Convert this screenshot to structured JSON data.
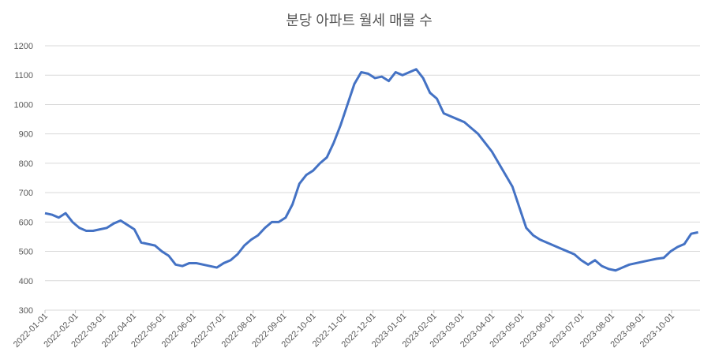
{
  "chart_data": {
    "type": "line",
    "title": "분당 아파트 월세 매물 수",
    "x": [
      "2022-01-01",
      "2022-01-08",
      "2022-01-15",
      "2022-01-22",
      "2022-01-29",
      "2022-02-05",
      "2022-02-12",
      "2022-02-19",
      "2022-02-26",
      "2022-03-05",
      "2022-03-12",
      "2022-03-19",
      "2022-03-26",
      "2022-04-02",
      "2022-04-09",
      "2022-04-16",
      "2022-04-23",
      "2022-04-30",
      "2022-05-07",
      "2022-05-14",
      "2022-05-21",
      "2022-05-28",
      "2022-06-04",
      "2022-06-11",
      "2022-06-18",
      "2022-06-25",
      "2022-07-02",
      "2022-07-09",
      "2022-07-16",
      "2022-07-23",
      "2022-07-30",
      "2022-08-06",
      "2022-08-13",
      "2022-08-20",
      "2022-08-27",
      "2022-09-03",
      "2022-09-10",
      "2022-09-17",
      "2022-09-24",
      "2022-10-01",
      "2022-10-08",
      "2022-10-15",
      "2022-10-22",
      "2022-10-29",
      "2022-11-05",
      "2022-11-12",
      "2022-11-19",
      "2022-11-26",
      "2022-12-03",
      "2022-12-10",
      "2022-12-17",
      "2022-12-24",
      "2022-12-31",
      "2023-01-07",
      "2023-01-14",
      "2023-01-21",
      "2023-01-28",
      "2023-02-04",
      "2023-02-11",
      "2023-02-18",
      "2023-02-25",
      "2023-03-04",
      "2023-03-11",
      "2023-03-18",
      "2023-03-25",
      "2023-04-01",
      "2023-04-08",
      "2023-04-15",
      "2023-04-22",
      "2023-04-29",
      "2023-05-06",
      "2023-05-13",
      "2023-05-20",
      "2023-05-27",
      "2023-06-03",
      "2023-06-10",
      "2023-06-17",
      "2023-06-24",
      "2023-07-01",
      "2023-07-08",
      "2023-07-15",
      "2023-07-22",
      "2023-07-29",
      "2023-08-05",
      "2023-08-12",
      "2023-08-19",
      "2023-08-26",
      "2023-09-02",
      "2023-09-09",
      "2023-09-16",
      "2023-09-23",
      "2023-09-30",
      "2023-10-07",
      "2023-10-14",
      "2023-10-21",
      "2023-10-28"
    ],
    "series": [
      {
        "color": "#4472c4",
        "values": [
          630,
          625,
          615,
          630,
          600,
          580,
          570,
          570,
          575,
          580,
          595,
          605,
          590,
          575,
          530,
          525,
          520,
          500,
          485,
          455,
          450,
          460,
          460,
          455,
          450,
          445,
          460,
          470,
          490,
          520,
          540,
          555,
          580,
          600,
          600,
          615,
          660,
          730,
          760,
          775,
          800,
          820,
          870,
          930,
          1000,
          1070,
          1110,
          1105,
          1090,
          1095,
          1080,
          1110,
          1100,
          1110,
          1120,
          1090,
          1040,
          1020,
          970,
          960,
          950,
          940,
          920,
          900,
          870,
          840,
          800,
          760,
          720,
          650,
          580,
          555,
          540,
          530,
          520,
          510,
          500,
          490,
          470,
          455,
          470,
          450,
          440,
          435,
          445,
          455,
          460,
          465,
          470,
          475,
          478,
          500,
          515,
          525,
          560,
          565
        ]
      }
    ],
    "xlim": [
      "2022-01-01",
      "2023-10-30"
    ],
    "xticks": [
      "2022-01-01",
      "2022-02-01",
      "2022-03-01",
      "2022-04-01",
      "2022-05-01",
      "2022-06-01",
      "2022-07-01",
      "2022-08-01",
      "2022-09-01",
      "2022-10-01",
      "2022-11-01",
      "2022-12-01",
      "2023-01-01",
      "2023-02-01",
      "2023-03-01",
      "2023-04-01",
      "2023-05-01",
      "2023-06-01",
      "2023-07-01",
      "2023-08-01",
      "2023-09-01",
      "2023-10-01"
    ],
    "ylim": [
      300,
      1200
    ],
    "yticks": [
      300,
      400,
      500,
      600,
      700,
      800,
      900,
      1000,
      1100,
      1200
    ],
    "grid": true
  }
}
